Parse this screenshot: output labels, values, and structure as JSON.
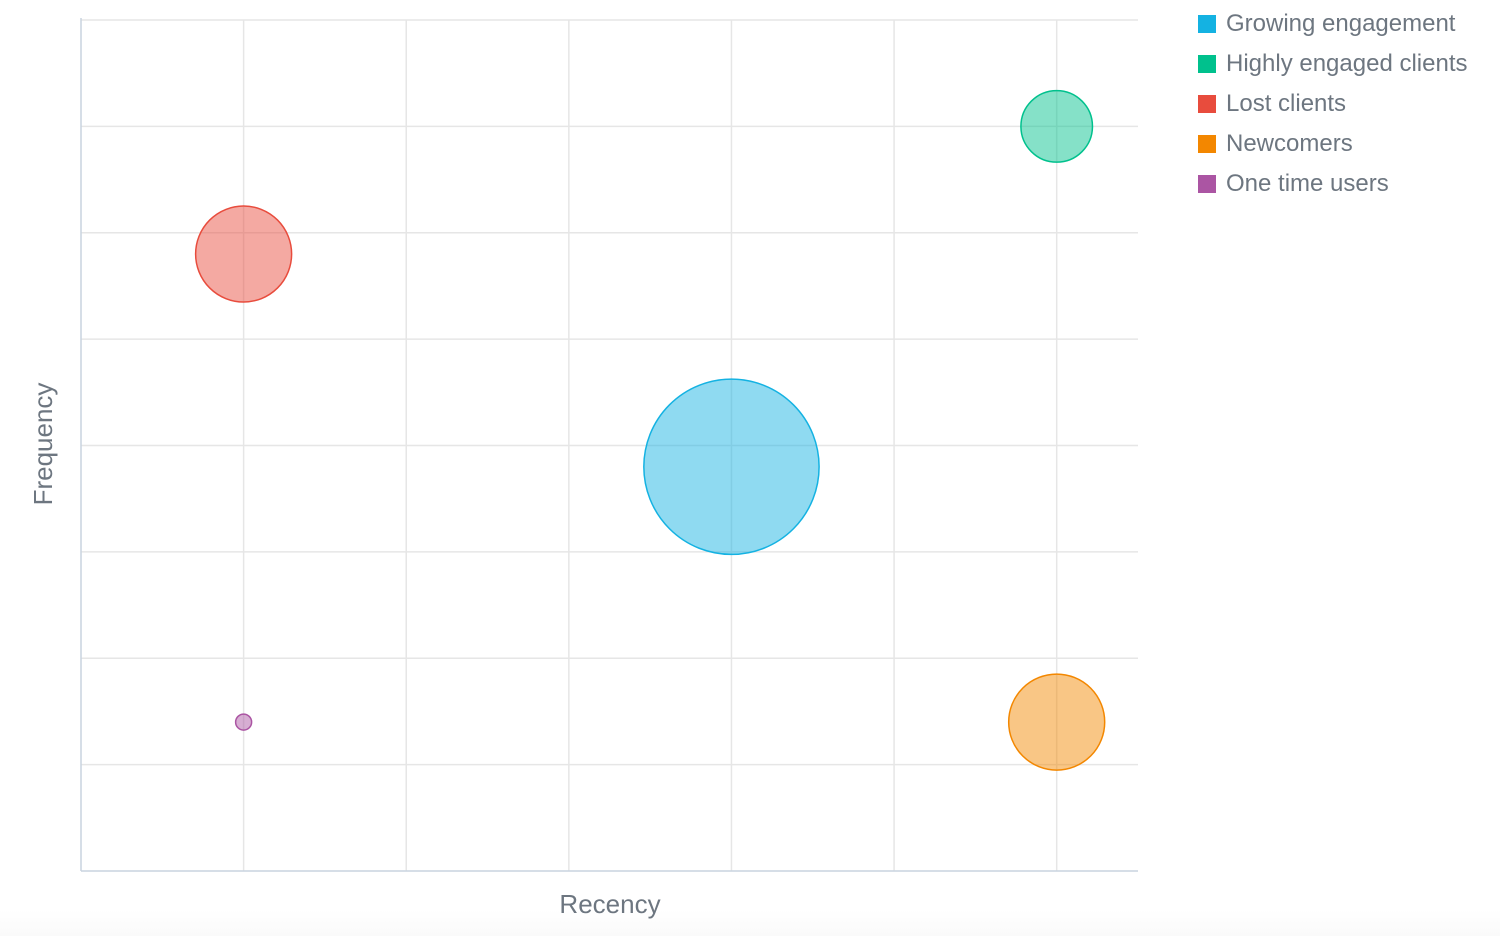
{
  "chart_data": {
    "type": "scatter",
    "variant": "bubble",
    "title": "",
    "xlabel": "Recency",
    "ylabel": "Frequency",
    "xlim": [
      0,
      6.5
    ],
    "ylim": [
      0,
      8
    ],
    "x_gridlines": [
      1,
      2,
      3,
      4,
      5,
      6
    ],
    "y_gridlines": [
      1,
      2,
      3,
      4,
      5,
      6,
      7
    ],
    "grid": true,
    "legend_position": "top-right",
    "series": [
      {
        "name": "Growing engagement",
        "color": "#14b2e2",
        "points": [
          {
            "x": 4,
            "y": 3.8,
            "size": 30
          }
        ]
      },
      {
        "name": "Highly engaged clients",
        "color": "#00c18d",
        "points": [
          {
            "x": 6,
            "y": 7,
            "size": 5
          }
        ]
      },
      {
        "name": "Lost clients",
        "color": "#e84c3d",
        "points": [
          {
            "x": 1,
            "y": 5.8,
            "size": 9
          }
        ]
      },
      {
        "name": "Newcomers",
        "color": "#f38700",
        "points": [
          {
            "x": 6,
            "y": 1.4,
            "size": 9
          }
        ]
      },
      {
        "name": "One time users",
        "color": "#ab55a3",
        "points": [
          {
            "x": 1,
            "y": 1.4,
            "size": 0.25
          }
        ]
      }
    ]
  }
}
